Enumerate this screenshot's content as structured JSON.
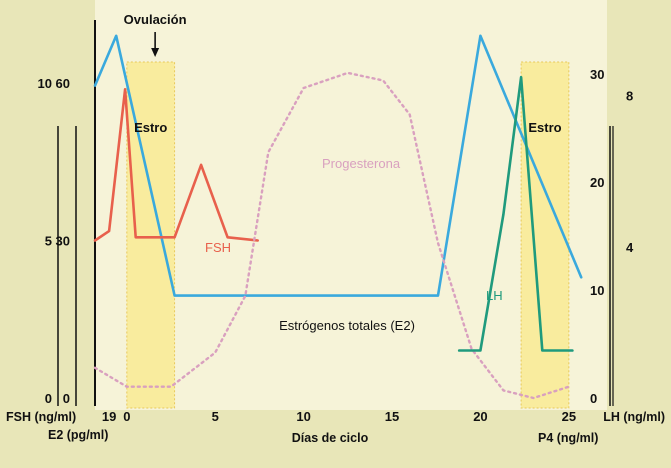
{
  "chart_data": {
    "type": "line",
    "title": "",
    "xlabel": "Días de ciclo",
    "x_ticks": [
      "19",
      "0",
      "5",
      "10",
      "15",
      "20",
      "25"
    ],
    "x_tick_values": [
      -1,
      0,
      5,
      10,
      15,
      20,
      25
    ],
    "xlim": [
      -1.8,
      25.8
    ],
    "left_axes": [
      {
        "label": "FSH (ng/ml)",
        "ticks": [
          0,
          5,
          10
        ],
        "ylim": [
          0,
          12
        ]
      },
      {
        "label": "E2 (pg/ml)",
        "ticks": [
          0,
          30,
          60
        ],
        "ylim": [
          0,
          72
        ]
      }
    ],
    "right_axes": [
      {
        "label": "LH (ng/ml)",
        "ticks": [
          0,
          10,
          20,
          30
        ],
        "ylim": [
          0,
          35
        ]
      },
      {
        "label": "P4 (ng/ml)",
        "ticks": [
          4,
          8
        ],
        "ylim": [
          0,
          10
        ]
      }
    ],
    "bands": [
      {
        "label": "Estro",
        "x_start": 0,
        "x_end": 2.7
      },
      {
        "label": "Estro",
        "x_start": 22.3,
        "x_end": 25
      }
    ],
    "annotations": [
      {
        "text": "Ovulación",
        "x": 1.6,
        "type": "arrow"
      }
    ],
    "series": [
      {
        "name": "Estrógenos totales (E2)",
        "axis": "E2 (pg/ml)",
        "color": "#3aa9dd",
        "style": "solid",
        "x": [
          -1.8,
          -0.6,
          2.7,
          17.6,
          20,
          25.7
        ],
        "y": [
          59.5,
          69,
          19.5,
          19.5,
          69,
          23
        ]
      },
      {
        "name": "FSH",
        "axis": "FSH (ng/ml)",
        "color": "#e8604c",
        "style": "solid",
        "x": [
          -1.8,
          -1,
          -0.1,
          0.5,
          2.7,
          4.2,
          5.7,
          7.4
        ],
        "y": [
          5.0,
          5.3,
          9.8,
          5.1,
          5.1,
          7.4,
          5.1,
          5.0
        ]
      },
      {
        "name": "Progesterona",
        "axis": "P4 (ng/ml)",
        "color": "#d9a0bf",
        "style": "dotted",
        "x": [
          -1.8,
          0,
          2.5,
          5,
          6.7,
          8,
          10,
          12.5,
          14.5,
          16,
          17.6,
          19.5,
          21.3,
          23,
          25
        ],
        "y": [
          0.8,
          0.3,
          0.3,
          1.2,
          2.7,
          6.5,
          8.2,
          8.6,
          8.4,
          7.5,
          4.1,
          1.3,
          0.2,
          0.0,
          0.3
        ]
      },
      {
        "name": "LH",
        "axis": "LH (ng/ml)",
        "color": "#1f9a7d",
        "style": "solid",
        "x": [
          18.8,
          20,
          21.3,
          22.3,
          23.5,
          25.2
        ],
        "y": [
          4.4,
          4.4,
          17,
          29.7,
          4.4,
          4.4
        ]
      }
    ]
  }
}
